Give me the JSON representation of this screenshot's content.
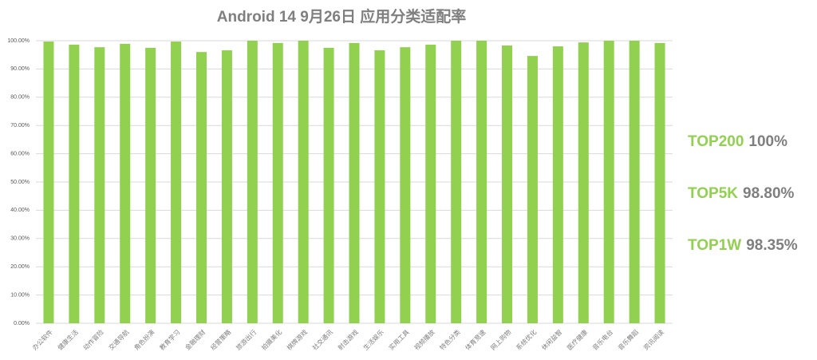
{
  "chart_data": {
    "type": "bar",
    "title": "Android 14  9月26日 应用分类适配率",
    "categories": [
      "办公软件",
      "健康生活",
      "动作冒险",
      "交通导航",
      "角色扮演",
      "教育学习",
      "金融理财",
      "经营策略",
      "旅游出行",
      "拍摄美化",
      "棋牌游戏",
      "社交通讯",
      "射击游戏",
      "生活娱乐",
      "实用工具",
      "视频播放",
      "特色分类",
      "体育竞速",
      "网上购物",
      "系统优化",
      "休闲益智",
      "医疗健康",
      "音乐电台",
      "音乐舞蹈",
      "资讯阅读"
    ],
    "values": [
      99.7,
      98.6,
      97.7,
      98.9,
      97.5,
      99.7,
      96.0,
      96.6,
      100,
      99.2,
      100,
      97.5,
      99.2,
      96.6,
      97.7,
      98.6,
      100,
      100,
      98.3,
      94.6,
      98.0,
      99.4,
      100,
      100,
      99.2
    ],
    "color": "#92d050",
    "ylim": [
      0,
      100
    ],
    "yticks": [
      {
        "value": 0,
        "label": "0.00%"
      },
      {
        "value": 10,
        "label": "10.00%"
      },
      {
        "value": 20,
        "label": "20.00%"
      },
      {
        "value": 30,
        "label": "30.00%"
      },
      {
        "value": 40,
        "label": "40.00%"
      },
      {
        "value": 50,
        "label": "50.00%"
      },
      {
        "value": 60,
        "label": "60.00%"
      },
      {
        "value": 70,
        "label": "70.00%"
      },
      {
        "value": 80,
        "label": "80.00%"
      },
      {
        "value": 90,
        "label": "90.00%"
      },
      {
        "value": 100,
        "label": "100.00%"
      }
    ],
    "grid": true,
    "annotations": [
      {
        "label": "TOP200",
        "value": "100%"
      },
      {
        "label": "TOP5K",
        "value": "98.80%"
      },
      {
        "label": "TOP1W",
        "value": "98.35%"
      }
    ]
  }
}
